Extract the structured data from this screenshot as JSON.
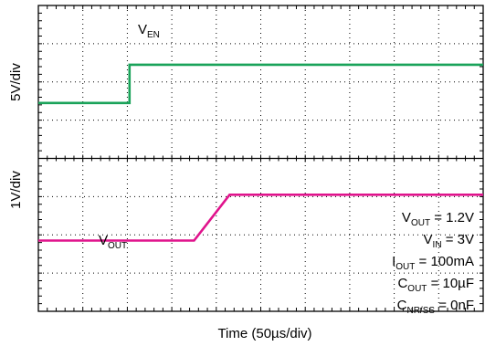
{
  "chart_data": {
    "type": "line",
    "title": "",
    "xlabel": "Time (50µs/div)",
    "x_divisions": 10,
    "ylabels": [
      {
        "text": "5V/div"
      },
      {
        "text": "1V/div"
      }
    ],
    "grid": true,
    "series": [
      {
        "name": "VEN",
        "label_main": "V",
        "label_sub": "EN",
        "color": "#1aa35a",
        "unit": "V",
        "scale_per_div": 5,
        "x": [
          0,
          2.05,
          2.05,
          10
        ],
        "y": [
          0,
          0,
          5,
          5
        ]
      },
      {
        "name": "VOUT",
        "label_main": "V",
        "label_sub": "OUT",
        "color": "#e0138c",
        "unit": "V",
        "scale_per_div": 1,
        "x": [
          0,
          3.5,
          4.3,
          10
        ],
        "y": [
          0,
          0,
          1.2,
          1.2
        ]
      }
    ],
    "annotations": [
      {
        "main": "V",
        "sub": "OUT",
        "rest": " = 1.2V"
      },
      {
        "main": "V",
        "sub": "IN",
        "rest": " = 3V"
      },
      {
        "main": "I",
        "sub": "OUT",
        "rest": " = 100mA"
      },
      {
        "main": "C",
        "sub": "OUT",
        "rest": " = 10µF"
      },
      {
        "main": "C",
        "sub": "NR/SS",
        "rest": " = 0nF"
      }
    ]
  }
}
